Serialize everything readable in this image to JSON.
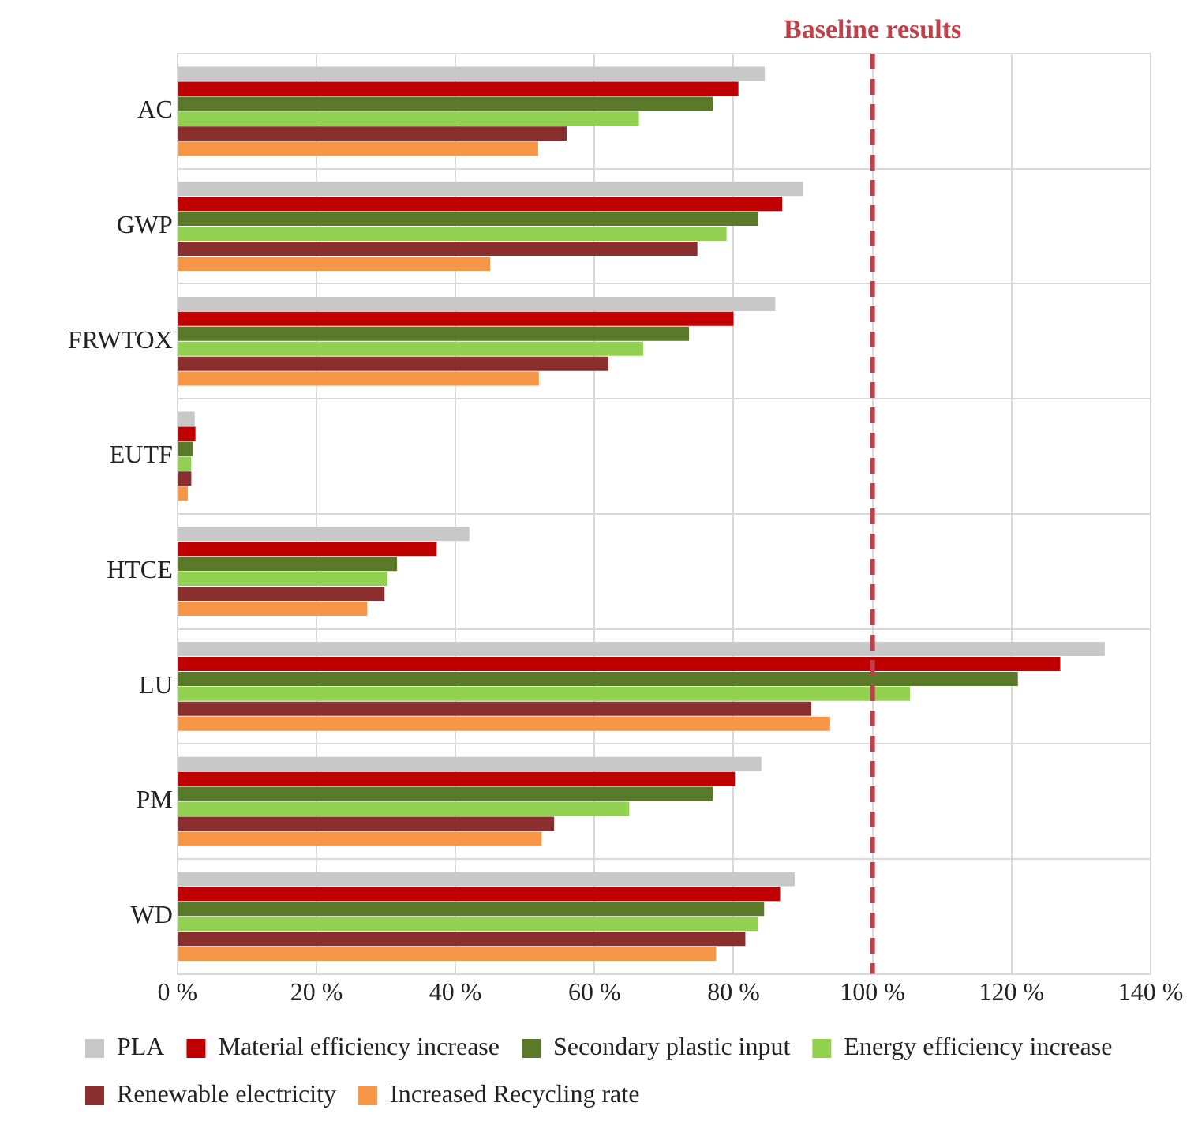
{
  "chart_data": {
    "type": "bar",
    "orientation": "horizontal",
    "categories": [
      "AC",
      "GWP",
      "FRWTOX",
      "EUTF",
      "HTCE",
      "LU",
      "PM",
      "WD"
    ],
    "series": [
      {
        "name": "PLA",
        "color": "#c8c8c8",
        "values": [
          84.5,
          90,
          86,
          2.5,
          42,
          133.4,
          84,
          88.8
        ]
      },
      {
        "name": "Material efficiency increase",
        "color": "#c00000",
        "values": [
          80.7,
          87,
          80,
          2.6,
          37.3,
          127,
          80.2,
          86.7
        ]
      },
      {
        "name": "Secondary plastic input",
        "color": "#5a7a2a",
        "values": [
          77,
          83.5,
          73.6,
          2.2,
          31.6,
          120.9,
          77,
          84.4
        ]
      },
      {
        "name": "Energy efficiency increase",
        "color": "#92d050",
        "values": [
          66.4,
          79,
          67,
          2,
          30.2,
          105.4,
          65,
          83.5
        ]
      },
      {
        "name": "Renewable electricity",
        "color": "#8b2e2e",
        "values": [
          56,
          74.8,
          62,
          2,
          29.8,
          91.2,
          54.2,
          81.7
        ]
      },
      {
        "name": "Increased Recycling rate",
        "color": "#f79646",
        "values": [
          51.9,
          45,
          52,
          1.5,
          27.3,
          93.9,
          52.4,
          77.5
        ]
      }
    ],
    "xlim": [
      0,
      140
    ],
    "xticks": [
      {
        "value": 0,
        "label": "0 %"
      },
      {
        "value": 20,
        "label": "20 %"
      },
      {
        "value": 40,
        "label": "40 %"
      },
      {
        "value": 60,
        "label": "60 %"
      },
      {
        "value": 80,
        "label": "80 %"
      },
      {
        "value": 100,
        "label": "100 %"
      },
      {
        "value": 120,
        "label": "120 %"
      },
      {
        "value": 140,
        "label": "140 %"
      }
    ],
    "ref_lines": [
      {
        "axis": "x",
        "value": 100,
        "label": "Baseline results",
        "color": "#c0404a",
        "line_style": "dashed"
      }
    ],
    "grid": true,
    "legend": "bottom"
  }
}
